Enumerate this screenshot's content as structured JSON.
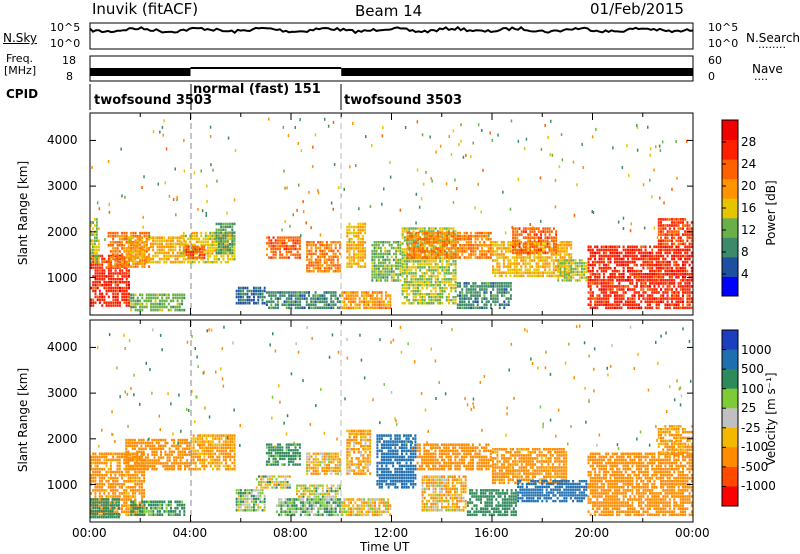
{
  "header": {
    "title": "Inuvik (fitACF)",
    "beam": "Beam 14",
    "date": "01/Feb/2015"
  },
  "sky_panel": {
    "left_label": "N.Sky",
    "left_ticks": [
      "10^5",
      "10^0"
    ],
    "right_ticks": [
      "10^5",
      "10^0"
    ],
    "right_label": "N.Search",
    "right_legend": "........"
  },
  "freq_panel": {
    "left_label_1": "Freq.",
    "left_label_2": "[MHz]",
    "left_ticks": [
      "18",
      "8"
    ],
    "right_ticks": [
      "60",
      "0"
    ],
    "right_label": "Nave",
    "right_legend": "...."
  },
  "cpid": {
    "label": "CPID",
    "segments": [
      {
        "start_ut": 0,
        "end_ut": 4,
        "text": "twofsound 3503"
      },
      {
        "start_ut": 4,
        "end_ut": 10,
        "text": "normal (fast) 151"
      },
      {
        "start_ut": 10,
        "end_ut": 24,
        "text": "twofsound 3503"
      }
    ]
  },
  "colors": {
    "power_scale": [
      "#0000ff",
      "#1f4fa0",
      "#3c8a6a",
      "#6ab04a",
      "#e6c400",
      "#ff9400",
      "#ff6000",
      "#ff2000",
      "#f00000"
    ],
    "velocity_scale": [
      "#1c3fc0",
      "#1f6fb0",
      "#2f8a5a",
      "#7ecb38",
      "#c0c0c0",
      "#f4b800",
      "#ff8c00",
      "#ff4a00",
      "#ff0000"
    ]
  },
  "chart_data": [
    {
      "type": "heatmap",
      "name": "power",
      "ylabel": "Slant Range [km]",
      "xlim": [
        0,
        24
      ],
      "ylim": [
        180,
        4600
      ],
      "yticks": [
        {
          "value": 1000,
          "label": "1000"
        },
        {
          "value": 2000,
          "label": "2000"
        },
        {
          "value": 3000,
          "label": "3000"
        },
        {
          "value": 4000,
          "label": "4000"
        }
      ],
      "colorbar": {
        "label": "Power [dB]",
        "range": [
          0,
          32
        ],
        "ticks": [
          {
            "value": 4,
            "label": "4"
          },
          {
            "value": 8,
            "label": "8"
          },
          {
            "value": 12,
            "label": "12"
          },
          {
            "value": 16,
            "label": "16"
          },
          {
            "value": 20,
            "label": "20"
          },
          {
            "value": 24,
            "label": "24"
          },
          {
            "value": 28,
            "label": "28"
          }
        ]
      },
      "regions": [
        {
          "t0": 0.0,
          "t1": 1.6,
          "r0": 350,
          "r1": 1500,
          "v": 28
        },
        {
          "t0": 0.0,
          "t1": 0.4,
          "r0": 1300,
          "r1": 2300,
          "v": 14
        },
        {
          "t0": 0.7,
          "t1": 2.4,
          "r0": 1200,
          "r1": 2000,
          "v": 22
        },
        {
          "t0": 1.5,
          "t1": 3.8,
          "r0": 1300,
          "r1": 1900,
          "v": 18
        },
        {
          "t0": 1.6,
          "t1": 3.8,
          "r0": 250,
          "r1": 650,
          "v": 12
        },
        {
          "t0": 3.6,
          "t1": 5.8,
          "r0": 1300,
          "r1": 2000,
          "v": 16
        },
        {
          "t0": 3.8,
          "t1": 4.6,
          "r0": 1400,
          "r1": 1700,
          "v": 26
        },
        {
          "t0": 5.0,
          "t1": 5.8,
          "r0": 1500,
          "r1": 2200,
          "v": 10
        },
        {
          "t0": 5.8,
          "t1": 7.0,
          "r0": 400,
          "r1": 800,
          "v": 6
        },
        {
          "t0": 7.0,
          "t1": 10.0,
          "r0": 300,
          "r1": 700,
          "v": 8
        },
        {
          "t0": 7.0,
          "t1": 8.4,
          "r0": 1400,
          "r1": 1900,
          "v": 24
        },
        {
          "t0": 8.6,
          "t1": 10.0,
          "r0": 1100,
          "r1": 1800,
          "v": 22
        },
        {
          "t0": 10.0,
          "t1": 12.0,
          "r0": 300,
          "r1": 700,
          "v": 20
        },
        {
          "t0": 10.2,
          "t1": 11.0,
          "r0": 1200,
          "r1": 2200,
          "v": 18
        },
        {
          "t0": 11.2,
          "t1": 12.4,
          "r0": 900,
          "r1": 1800,
          "v": 12
        },
        {
          "t0": 12.4,
          "t1": 14.6,
          "r0": 400,
          "r1": 2100,
          "v": 14
        },
        {
          "t0": 12.6,
          "t1": 16.0,
          "r0": 1400,
          "r1": 2000,
          "v": 22
        },
        {
          "t0": 14.6,
          "t1": 16.8,
          "r0": 300,
          "r1": 900,
          "v": 8
        },
        {
          "t0": 16.0,
          "t1": 19.2,
          "r0": 1000,
          "r1": 1800,
          "v": 18
        },
        {
          "t0": 16.8,
          "t1": 18.6,
          "r0": 1500,
          "r1": 2100,
          "v": 24
        },
        {
          "t0": 18.6,
          "t1": 19.8,
          "r0": 900,
          "r1": 1400,
          "v": 14
        },
        {
          "t0": 19.8,
          "t1": 24.0,
          "r0": 300,
          "r1": 1700,
          "v": 28
        },
        {
          "t0": 22.6,
          "t1": 24.0,
          "r0": 1700,
          "r1": 2300,
          "v": 26
        }
      ]
    },
    {
      "type": "heatmap",
      "name": "velocity",
      "xlabel": "Time UT",
      "ylabel": "Slant Range [km]",
      "xlim": [
        0,
        24
      ],
      "ylim": [
        180,
        4600
      ],
      "xticks": [
        {
          "value": 0,
          "label": "00:00"
        },
        {
          "value": 4,
          "label": "04:00"
        },
        {
          "value": 8,
          "label": "08:00"
        },
        {
          "value": 12,
          "label": "12:00"
        },
        {
          "value": 16,
          "label": "16:00"
        },
        {
          "value": 20,
          "label": "20:00"
        },
        {
          "value": 24,
          "label": "00:00"
        }
      ],
      "yticks": [
        {
          "value": 1000,
          "label": "1000"
        },
        {
          "value": 2000,
          "label": "2000"
        },
        {
          "value": 3000,
          "label": "3000"
        },
        {
          "value": 4000,
          "label": "4000"
        }
      ],
      "colorbar": {
        "label": "Velocity [m s⁻¹]",
        "ticks": [
          "1000",
          "500",
          "100",
          "25",
          "-25",
          "-100",
          "-500",
          "-1000"
        ]
      },
      "regions": [
        {
          "t0": 0.0,
          "t1": 2.2,
          "r0": 300,
          "r1": 1700,
          "v": -200
        },
        {
          "t0": 0.0,
          "t1": 1.2,
          "r0": 250,
          "r1": 700,
          "v": 300
        },
        {
          "t0": 1.4,
          "t1": 4.0,
          "r0": 1300,
          "r1": 2000,
          "v": -300
        },
        {
          "t0": 1.6,
          "t1": 3.8,
          "r0": 300,
          "r1": 650,
          "v": 150
        },
        {
          "t0": 4.0,
          "t1": 5.8,
          "r0": 1300,
          "r1": 2100,
          "v": -150
        },
        {
          "t0": 5.8,
          "t1": 7.0,
          "r0": 400,
          "r1": 900,
          "v": 80
        },
        {
          "t0": 6.6,
          "t1": 8.0,
          "r0": 900,
          "r1": 1200,
          "v": 0
        },
        {
          "t0": 7.0,
          "t1": 8.4,
          "r0": 1400,
          "r1": 1900,
          "v": 200
        },
        {
          "t0": 7.4,
          "t1": 10.0,
          "r0": 300,
          "r1": 700,
          "v": 100
        },
        {
          "t0": 8.2,
          "t1": 10.0,
          "r0": 700,
          "r1": 1000,
          "v": 0
        },
        {
          "t0": 8.6,
          "t1": 10.0,
          "r0": 1200,
          "r1": 1700,
          "v": -80
        },
        {
          "t0": 10.0,
          "t1": 12.0,
          "r0": 300,
          "r1": 700,
          "v": -60
        },
        {
          "t0": 10.2,
          "t1": 11.2,
          "r0": 1200,
          "r1": 2200,
          "v": -120
        },
        {
          "t0": 11.4,
          "t1": 13.0,
          "r0": 900,
          "r1": 2100,
          "v": 700
        },
        {
          "t0": 13.0,
          "t1": 16.0,
          "r0": 1300,
          "r1": 1900,
          "v": -250
        },
        {
          "t0": 13.2,
          "t1": 15.0,
          "r0": 400,
          "r1": 1200,
          "v": -80
        },
        {
          "t0": 15.0,
          "t1": 17.0,
          "r0": 300,
          "r1": 900,
          "v": 300
        },
        {
          "t0": 16.0,
          "t1": 19.0,
          "r0": 1000,
          "r1": 1800,
          "v": -200
        },
        {
          "t0": 17.0,
          "t1": 19.8,
          "r0": 600,
          "r1": 1100,
          "v": 700
        },
        {
          "t0": 19.8,
          "t1": 24.0,
          "r0": 300,
          "r1": 1700,
          "v": -300
        },
        {
          "t0": 22.6,
          "t1": 24.0,
          "r0": 1600,
          "r1": 2300,
          "v": -150
        }
      ]
    }
  ]
}
